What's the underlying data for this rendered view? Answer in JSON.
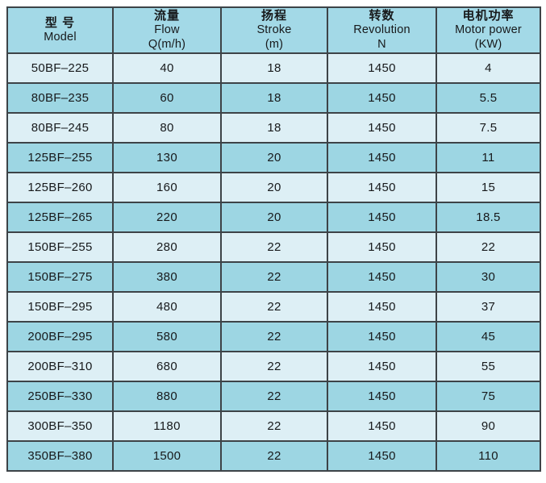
{
  "table": {
    "columns": [
      {
        "zh": "型  号",
        "en": "Model",
        "sub": ""
      },
      {
        "zh": "流量",
        "en": "Flow",
        "sub": "Q(m/h)"
      },
      {
        "zh": "扬程",
        "en": "Stroke",
        "sub": "(m)"
      },
      {
        "zh": "转数",
        "en": "Revolution",
        "sub": "N"
      },
      {
        "zh": "电机功率",
        "en": "Motor power",
        "sub": "(KW)"
      }
    ],
    "rows": [
      [
        "50BF–225",
        "40",
        "18",
        "1450",
        "4"
      ],
      [
        "80BF–235",
        "60",
        "18",
        "1450",
        "5.5"
      ],
      [
        "80BF–245",
        "80",
        "18",
        "1450",
        "7.5"
      ],
      [
        "125BF–255",
        "130",
        "20",
        "1450",
        "11"
      ],
      [
        "125BF–260",
        "160",
        "20",
        "1450",
        "15"
      ],
      [
        "125BF–265",
        "220",
        "20",
        "1450",
        "18.5"
      ],
      [
        "150BF–255",
        "280",
        "22",
        "1450",
        "22"
      ],
      [
        "150BF–275",
        "380",
        "22",
        "1450",
        "30"
      ],
      [
        "150BF–295",
        "480",
        "22",
        "1450",
        "37"
      ],
      [
        "200BF–295",
        "580",
        "22",
        "1450",
        "45"
      ],
      [
        "200BF–310",
        "680",
        "22",
        "1450",
        "55"
      ],
      [
        "250BF–330",
        "880",
        "22",
        "1450",
        "75"
      ],
      [
        "300BF–350",
        "1180",
        "22",
        "1450",
        "90"
      ],
      [
        "350BF–380",
        "1500",
        "22",
        "1450",
        "110"
      ]
    ]
  },
  "colors": {
    "header_bg": "#a3d9e7",
    "row_odd_bg": "#ddeff5",
    "row_even_bg": "#9dd6e3",
    "grid_line": "#3d4347",
    "text": "#17191b",
    "page_bg": "#ffffff"
  }
}
